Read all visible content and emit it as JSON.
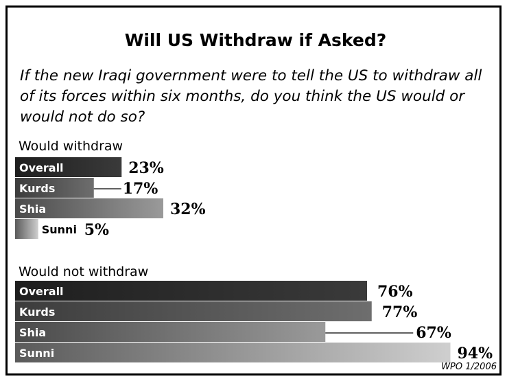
{
  "title": "Will US Withdraw if Asked?",
  "question": "If the new Iraqi government were to tell the US to withdraw all of its forces within six months, do you think the US would or would not do so?",
  "source": "WPO 1/2006",
  "chart_data": {
    "type": "bar",
    "orientation": "horizontal",
    "unit": "%",
    "groups": [
      {
        "label": "Would withdraw",
        "categories": [
          "Overall",
          "Kurds",
          "Shia",
          "Sunni"
        ],
        "values": [
          23,
          17,
          32,
          5
        ],
        "value_labels": [
          "23%",
          "17%",
          "32%",
          "5%"
        ]
      },
      {
        "label": "Would not withdraw",
        "categories": [
          "Overall",
          "Kurds",
          "Shia",
          "Sunni"
        ],
        "values": [
          76,
          77,
          67,
          94
        ],
        "value_labels": [
          "76%",
          "77%",
          "67%",
          "94%"
        ]
      }
    ],
    "colors": {
      "Overall": [
        "#1e1e1e",
        "#3a3a3a"
      ],
      "Kurds": [
        "#3c3c3c",
        "#6e6e6e"
      ],
      "Shia": [
        "#4a4a4a",
        "#9a9a9a"
      ],
      "Sunni": [
        "#5a5a5a",
        "#cfcfcf"
      ]
    }
  }
}
